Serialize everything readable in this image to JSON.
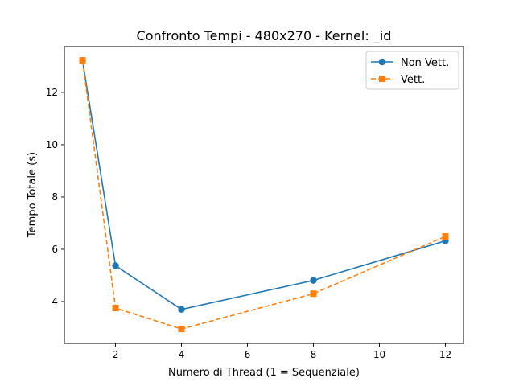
{
  "chart_data": {
    "type": "line",
    "title": "Confronto Tempi - 480x270 - Kernel: _id",
    "xlabel": "Numero di Thread (1 = Sequenziale)",
    "ylabel": "Tempo Totale (s)",
    "x": [
      1,
      2,
      4,
      8,
      12
    ],
    "xlim": [
      0.45,
      12.55
    ],
    "ylim": [
      2.4,
      13.75
    ],
    "xticks": [
      2,
      4,
      6,
      8,
      10,
      12
    ],
    "yticks": [
      4,
      6,
      8,
      10,
      12
    ],
    "grid": false,
    "legend_position": "top-right",
    "series": [
      {
        "name": "Non Vett.",
        "values": [
          13.22,
          5.37,
          3.7,
          4.81,
          6.32
        ],
        "color": "#1f77b4",
        "line_style": "solid",
        "marker": "circle"
      },
      {
        "name": "Vett.",
        "values": [
          13.22,
          3.75,
          2.95,
          4.3,
          6.49
        ],
        "color": "#ff7f0e",
        "line_style": "dashed",
        "marker": "square"
      }
    ]
  }
}
